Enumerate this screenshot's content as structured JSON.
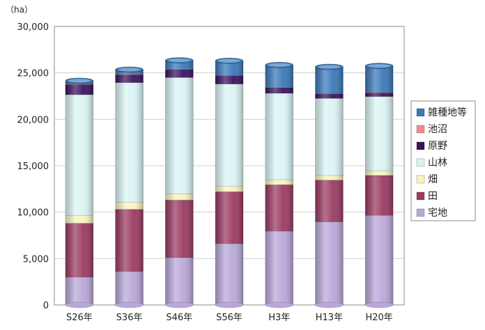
{
  "chart_data": {
    "type": "bar",
    "stacked": true,
    "unit": "（ha）",
    "categories": [
      "S26年",
      "S36年",
      "S46年",
      "S56年",
      "H3年",
      "H13年",
      "H20年"
    ],
    "ylim": [
      0,
      30000
    ],
    "yticks": [
      "0",
      "5,000",
      "10,000",
      "15,000",
      "20,000",
      "25,000",
      "30,000"
    ],
    "ytick_values": [
      0,
      5000,
      10000,
      15000,
      20000,
      25000,
      30000
    ],
    "grid": true,
    "legend_position": "right",
    "series": [
      {
        "name": "宅地",
        "color": "#b8a7d8",
        "values": [
          3000,
          3600,
          5100,
          6600,
          7950,
          8950,
          9650
        ]
      },
      {
        "name": "田",
        "color": "#9a3a62",
        "values": [
          5800,
          6700,
          6200,
          5600,
          5000,
          4500,
          4300
        ]
      },
      {
        "name": "畑",
        "color": "#f7f3c0",
        "values": [
          850,
          750,
          650,
          600,
          550,
          500,
          500
        ]
      },
      {
        "name": "山林",
        "color": "#dbf3f3",
        "values": [
          13000,
          12900,
          12550,
          11000,
          9300,
          8300,
          8000
        ]
      },
      {
        "name": "原野",
        "color": "#3a125e",
        "values": [
          1100,
          850,
          850,
          900,
          600,
          500,
          400
        ]
      },
      {
        "name": "池沼",
        "color": "#f08a8a",
        "values": [
          50,
          50,
          50,
          50,
          50,
          50,
          50
        ]
      },
      {
        "name": "雑種地等",
        "color": "#3a78b8",
        "values": [
          350,
          500,
          950,
          1550,
          2400,
          2850,
          2850
        ]
      }
    ]
  }
}
